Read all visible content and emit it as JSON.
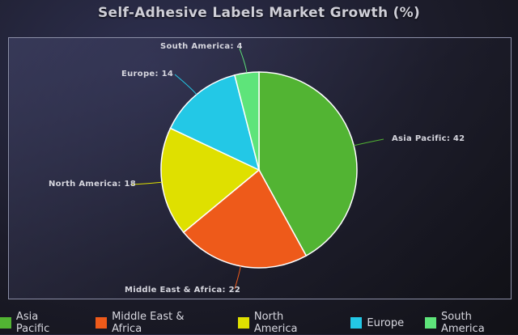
{
  "chart_data": {
    "type": "pie",
    "title": "Self-Adhesive Labels Market Growth (%)",
    "slices": [
      {
        "label": "Asia Pacific",
        "value": 42,
        "color": "#52b433",
        "data_label": "Asia Pacific: 42"
      },
      {
        "label": "Middle East & Africa",
        "value": 22,
        "color": "#ee5a1a",
        "data_label": "Middle East & Africa: 22"
      },
      {
        "label": "North America",
        "value": 18,
        "color": "#dfe000",
        "data_label": "North America: 18"
      },
      {
        "label": "Europe",
        "value": 14,
        "color": "#23c8e6",
        "data_label": "Europe: 14"
      },
      {
        "label": "South America",
        "value": 4,
        "color": "#5ee47a",
        "data_label": "South America: 4"
      }
    ],
    "legend_position": "bottom"
  }
}
